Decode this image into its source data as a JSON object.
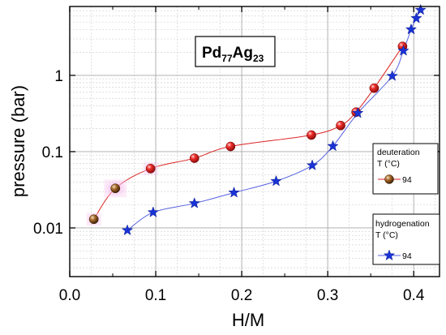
{
  "chart_data": {
    "type": "scatter",
    "title": "",
    "annotation": {
      "base": "Pd",
      "sub1": "77",
      "mid": "Ag",
      "sub2": "23"
    },
    "xlabel": "H/M",
    "ylabel": "pressure (bar)",
    "xlim": [
      0.0,
      0.43
    ],
    "ylim": [
      0.0023,
      8.0
    ],
    "yscale": "log",
    "xticks": [
      0.0,
      0.1,
      0.2,
      0.3,
      0.4
    ],
    "xtick_labels": [
      "0.0",
      "0.1",
      "0.2",
      "0.3",
      "0.4"
    ],
    "yticks": [
      0.01,
      0.1,
      1
    ],
    "ytick_labels": [
      "0.01",
      "0.1",
      "1"
    ],
    "grid": true,
    "series": [
      {
        "name": "94",
        "group": "deuteration",
        "legend_title": "deuteration",
        "legend_subtitle": "T (°C)",
        "marker": "sphere",
        "color": "#e8262b",
        "line_color": "#dd2222",
        "x": [
          0.028,
          0.053,
          0.094,
          0.145,
          0.187,
          0.281,
          0.315,
          0.333,
          0.354,
          0.387
        ],
        "y": [
          0.013,
          0.033,
          0.06,
          0.082,
          0.117,
          0.165,
          0.22,
          0.33,
          0.68,
          2.4
        ]
      },
      {
        "name": "94",
        "group": "hydrogenation",
        "legend_title": "hydrogenation",
        "legend_subtitle": "T (°C)",
        "marker": "star",
        "color": "#1a33d6",
        "line_color": "#5561e0",
        "x": [
          0.067,
          0.097,
          0.145,
          0.191,
          0.24,
          0.282,
          0.306,
          0.335,
          0.375,
          0.388,
          0.397,
          0.403,
          0.408
        ],
        "y": [
          0.0093,
          0.016,
          0.021,
          0.029,
          0.041,
          0.066,
          0.118,
          0.32,
          0.98,
          2.1,
          4.0,
          5.6,
          7.2
        ]
      }
    ]
  }
}
